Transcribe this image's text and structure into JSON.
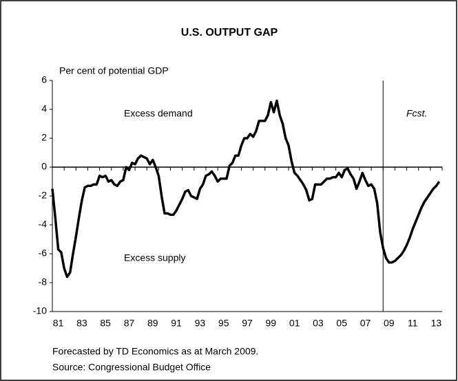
{
  "chart_data": {
    "type": "line",
    "title": "U.S. OUTPUT GAP",
    "y_axis_label": "Per cent of potential GDP",
    "annotations": [
      "Excess demand",
      "Excess supply",
      "Fcst."
    ],
    "notes": [
      "Forecasted by TD Economics as at March 2009.",
      "Source: Congressional Budget Office"
    ],
    "forecast_start": 2009,
    "xlim": [
      1981,
      2014
    ],
    "ylim": [
      -10,
      6
    ],
    "yticks": [
      6,
      4,
      2,
      0,
      -2,
      -4,
      -6,
      -8,
      -10
    ],
    "xticks": [
      {
        "value": 1981.5,
        "label": "81"
      },
      {
        "value": 1983.5,
        "label": "83"
      },
      {
        "value": 1985.5,
        "label": "85"
      },
      {
        "value": 1987.5,
        "label": "87"
      },
      {
        "value": 1989.5,
        "label": "89"
      },
      {
        "value": 1991.5,
        "label": "91"
      },
      {
        "value": 1993.5,
        "label": "93"
      },
      {
        "value": 1995.5,
        "label": "95"
      },
      {
        "value": 1997.5,
        "label": "97"
      },
      {
        "value": 1999.5,
        "label": "99"
      },
      {
        "value": 2001.5,
        "label": "01"
      },
      {
        "value": 2003.5,
        "label": "03"
      },
      {
        "value": 2005.5,
        "label": "05"
      },
      {
        "value": 2007.5,
        "label": "07"
      },
      {
        "value": 2009.5,
        "label": "09"
      },
      {
        "value": 2011.5,
        "label": "11"
      },
      {
        "value": 2013.5,
        "label": "13"
      }
    ],
    "x": [
      1981,
      1981.25,
      1981.5,
      1981.75,
      1982,
      1982.25,
      1982.5,
      1982.75,
      1983,
      1983.25,
      1983.5,
      1983.75,
      1984,
      1984.25,
      1984.5,
      1984.75,
      1985,
      1985.25,
      1985.5,
      1985.75,
      1986,
      1986.25,
      1986.5,
      1986.75,
      1987,
      1987.25,
      1987.5,
      1987.75,
      1988,
      1988.25,
      1988.5,
      1988.75,
      1989,
      1989.25,
      1989.5,
      1989.75,
      1990,
      1990.25,
      1990.5,
      1990.75,
      1991,
      1991.25,
      1991.5,
      1991.75,
      1992,
      1992.25,
      1992.5,
      1992.75,
      1993,
      1993.25,
      1993.5,
      1993.75,
      1994,
      1994.25,
      1994.5,
      1994.75,
      1995,
      1995.25,
      1995.5,
      1995.75,
      1996,
      1996.25,
      1996.5,
      1996.75,
      1997,
      1997.25,
      1997.5,
      1997.75,
      1998,
      1998.25,
      1998.5,
      1998.75,
      1999,
      1999.25,
      1999.5,
      1999.75,
      2000,
      2000.25,
      2000.5,
      2000.75,
      2001,
      2001.25,
      2001.5,
      2001.75,
      2002,
      2002.25,
      2002.5,
      2002.75,
      2003,
      2003.25,
      2003.5,
      2003.75,
      2004,
      2004.25,
      2004.5,
      2004.75,
      2005,
      2005.25,
      2005.5,
      2005.75,
      2006,
      2006.25,
      2006.5,
      2006.75,
      2007,
      2007.25,
      2007.5,
      2007.75,
      2008,
      2008.25,
      2008.5,
      2008.75,
      2009,
      2009.25,
      2009.5,
      2009.75,
      2010,
      2010.25,
      2010.5,
      2010.75,
      2011,
      2011.25,
      2011.5,
      2011.75,
      2012,
      2012.25,
      2012.5,
      2012.75,
      2013,
      2013.25,
      2013.5,
      2013.75
    ],
    "series": [
      {
        "name": "Output gap",
        "color": "#000000",
        "values": [
          -1.5,
          -3.5,
          -5.7,
          -5.9,
          -7.0,
          -7.6,
          -7.3,
          -6.0,
          -4.8,
          -3.5,
          -2.3,
          -1.4,
          -1.3,
          -1.3,
          -1.2,
          -1.2,
          -0.6,
          -0.7,
          -0.6,
          -1.0,
          -0.9,
          -1.2,
          -1.3,
          -1.0,
          -0.9,
          0.0,
          -0.2,
          0.3,
          0.2,
          0.6,
          0.8,
          0.7,
          0.6,
          0.2,
          0.5,
          0.0,
          -0.6,
          -2.0,
          -3.2,
          -3.2,
          -3.3,
          -3.3,
          -3.0,
          -2.6,
          -2.2,
          -1.7,
          -1.6,
          -2.0,
          -2.1,
          -2.2,
          -1.5,
          -1.2,
          -0.6,
          -0.5,
          -0.3,
          -0.6,
          -1.0,
          -0.8,
          -0.8,
          -0.8,
          0.1,
          0.3,
          0.8,
          0.8,
          1.5,
          2.0,
          2.0,
          2.3,
          2.1,
          2.5,
          3.2,
          3.2,
          3.2,
          3.6,
          4.5,
          3.8,
          4.6,
          3.6,
          3.0,
          2.0,
          1.5,
          0.4,
          -0.4,
          -0.6,
          -0.9,
          -1.2,
          -1.6,
          -2.3,
          -2.2,
          -1.2,
          -1.2,
          -1.2,
          -1.0,
          -0.8,
          -0.8,
          -0.7,
          -0.7,
          -0.4,
          -0.7,
          -0.2,
          -0.1,
          -0.5,
          -0.8,
          -1.5,
          -1.0,
          -0.4,
          -0.9,
          -1.3,
          -1.2,
          -1.5,
          -2.5,
          -4.5,
          -5.6,
          -6.3,
          -6.6,
          -6.6,
          -6.5,
          -6.3,
          -6.1,
          -5.8,
          -5.4,
          -4.9,
          -4.3,
          -3.8,
          -3.3,
          -2.8,
          -2.4,
          -2.1,
          -1.8,
          -1.5,
          -1.3,
          -1.0
        ]
      }
    ]
  }
}
